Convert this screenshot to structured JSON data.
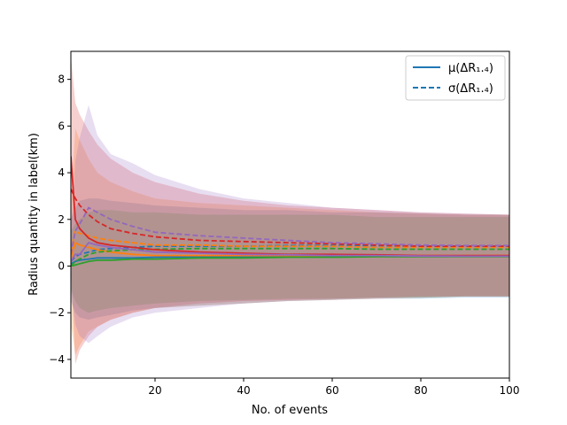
{
  "chart_data": {
    "type": "line",
    "title": "",
    "xlabel": "No. of events",
    "ylabel": "Radius quantity in label(km)",
    "xlim": [
      1,
      100
    ],
    "ylim": [
      -4.8,
      9.2
    ],
    "xticks": [
      20,
      40,
      60,
      80,
      100
    ],
    "xtick_labels": [
      "20",
      "40",
      "60",
      "80",
      "100"
    ],
    "yticks": [
      -4,
      -2,
      0,
      2,
      4,
      6,
      8
    ],
    "ytick_labels": [
      "−4",
      "−2",
      "0",
      "2",
      "4",
      "6",
      "8"
    ],
    "legend": {
      "position": "top-right",
      "entries": [
        {
          "label": "μ(ΔR₁.₄)",
          "style": "solid",
          "color": "#1f77b4"
        },
        {
          "label": "σ(ΔR₁.₄)",
          "style": "dashed",
          "color": "#1f77b4"
        }
      ]
    },
    "series": [
      {
        "name": "blue",
        "color": "#1f77b4",
        "x": [
          1,
          2,
          3,
          5,
          7,
          10,
          15,
          20,
          30,
          40,
          50,
          60,
          70,
          80,
          90,
          100
        ],
        "mean": [
          0.1,
          0.2,
          0.25,
          0.3,
          0.35,
          0.35,
          0.35,
          0.38,
          0.4,
          0.4,
          0.42,
          0.42,
          0.43,
          0.43,
          0.43,
          0.43
        ],
        "sigma": [
          0.2,
          0.4,
          0.5,
          0.6,
          0.7,
          0.75,
          0.8,
          0.85,
          0.85,
          0.85,
          0.88,
          0.88,
          0.88,
          0.85,
          0.85,
          0.85
        ],
        "upper": [
          2.0,
          2.5,
          2.8,
          2.9,
          2.9,
          2.8,
          2.7,
          2.6,
          2.5,
          2.4,
          2.4,
          2.3,
          2.3,
          2.25,
          2.2,
          2.2
        ],
        "lower": [
          -1.5,
          -2.0,
          -2.2,
          -2.3,
          -2.2,
          -2.1,
          -1.9,
          -1.8,
          -1.7,
          -1.6,
          -1.5,
          -1.45,
          -1.4,
          -1.4,
          -1.35,
          -1.35
        ]
      },
      {
        "name": "orange",
        "color": "#ff7f0e",
        "x": [
          1,
          2,
          3,
          5,
          7,
          10,
          15,
          20,
          30,
          40,
          50,
          60,
          70,
          80,
          90,
          100
        ],
        "mean": [
          0.3,
          1.0,
          0.9,
          0.8,
          0.7,
          0.6,
          0.5,
          0.45,
          0.45,
          0.45,
          0.45,
          0.45,
          0.45,
          0.45,
          0.45,
          0.45
        ],
        "sigma": [
          0.6,
          1.5,
          1.4,
          1.3,
          1.2,
          1.1,
          1.0,
          0.9,
          0.9,
          0.85,
          0.85,
          0.85,
          0.8,
          0.8,
          0.8,
          0.8
        ],
        "upper": [
          2.5,
          5.9,
          5.4,
          4.6,
          4.0,
          3.6,
          3.2,
          2.9,
          2.7,
          2.6,
          2.5,
          2.4,
          2.3,
          2.25,
          2.2,
          2.2
        ],
        "lower": [
          -2.5,
          -3.8,
          -3.4,
          -2.8,
          -2.6,
          -2.3,
          -2.0,
          -1.8,
          -1.7,
          -1.6,
          -1.5,
          -1.45,
          -1.4,
          -1.35,
          -1.3,
          -1.3
        ]
      },
      {
        "name": "green",
        "color": "#2ca02c",
        "x": [
          1,
          2,
          3,
          5,
          7,
          10,
          15,
          20,
          30,
          40,
          50,
          60,
          70,
          80,
          90,
          100
        ],
        "mean": [
          0.0,
          0.05,
          0.1,
          0.2,
          0.25,
          0.25,
          0.3,
          0.3,
          0.35,
          0.35,
          0.38,
          0.38,
          0.4,
          0.4,
          0.4,
          0.4
        ],
        "sigma": [
          0.0,
          0.2,
          0.3,
          0.5,
          0.6,
          0.65,
          0.7,
          0.72,
          0.75,
          0.75,
          0.75,
          0.75,
          0.72,
          0.72,
          0.72,
          0.72
        ],
        "upper": [
          1.5,
          1.8,
          2.0,
          2.3,
          2.4,
          2.4,
          2.3,
          2.3,
          2.2,
          2.2,
          2.2,
          2.2,
          2.1,
          2.1,
          2.1,
          2.1
        ],
        "lower": [
          -1.0,
          -1.5,
          -1.8,
          -2.0,
          -1.9,
          -1.8,
          -1.7,
          -1.6,
          -1.5,
          -1.45,
          -1.4,
          -1.4,
          -1.35,
          -1.35,
          -1.3,
          -1.3
        ]
      },
      {
        "name": "red",
        "color": "#d62728",
        "x": [
          1,
          2,
          3,
          5,
          7,
          10,
          15,
          20,
          30,
          40,
          50,
          60,
          70,
          80,
          90,
          100
        ],
        "mean": [
          4.7,
          2.0,
          1.6,
          1.2,
          1.0,
          0.9,
          0.8,
          0.7,
          0.6,
          0.55,
          0.5,
          0.5,
          0.48,
          0.45,
          0.45,
          0.45
        ],
        "sigma": [
          3.3,
          2.9,
          2.6,
          2.2,
          1.9,
          1.6,
          1.4,
          1.25,
          1.1,
          1.05,
          1.0,
          0.95,
          0.9,
          0.85,
          0.85,
          0.85
        ],
        "upper": [
          9.0,
          7.0,
          6.5,
          5.8,
          5.2,
          4.6,
          4.0,
          3.6,
          3.1,
          2.8,
          2.6,
          2.5,
          2.4,
          2.3,
          2.25,
          2.2
        ],
        "lower": [
          0.0,
          -4.2,
          -3.6,
          -3.0,
          -2.6,
          -2.3,
          -2.0,
          -1.8,
          -1.6,
          -1.5,
          -1.45,
          -1.4,
          -1.35,
          -1.3,
          -1.3,
          -1.3
        ]
      },
      {
        "name": "purple",
        "color": "#9467bd",
        "x": [
          1,
          2,
          3,
          5,
          7,
          10,
          15,
          20,
          30,
          40,
          50,
          60,
          70,
          80,
          90,
          100
        ],
        "mean": [
          0.2,
          0.5,
          0.5,
          1.0,
          0.9,
          0.8,
          0.7,
          0.6,
          0.55,
          0.5,
          0.48,
          0.45,
          0.45,
          0.43,
          0.42,
          0.42
        ],
        "sigma": [
          0.5,
          1.5,
          1.8,
          2.5,
          2.3,
          2.0,
          1.7,
          1.45,
          1.3,
          1.2,
          1.1,
          1.0,
          0.95,
          0.9,
          0.88,
          0.88
        ],
        "upper": [
          1.5,
          4.5,
          5.5,
          6.9,
          5.6,
          4.8,
          4.4,
          3.9,
          3.3,
          2.9,
          2.7,
          2.5,
          2.4,
          2.3,
          2.25,
          2.2
        ],
        "lower": [
          -1.0,
          -2.5,
          -3.0,
          -3.3,
          -3.0,
          -2.6,
          -2.2,
          -2.0,
          -1.8,
          -1.6,
          -1.5,
          -1.45,
          -1.4,
          -1.35,
          -1.3,
          -1.3
        ]
      }
    ]
  }
}
